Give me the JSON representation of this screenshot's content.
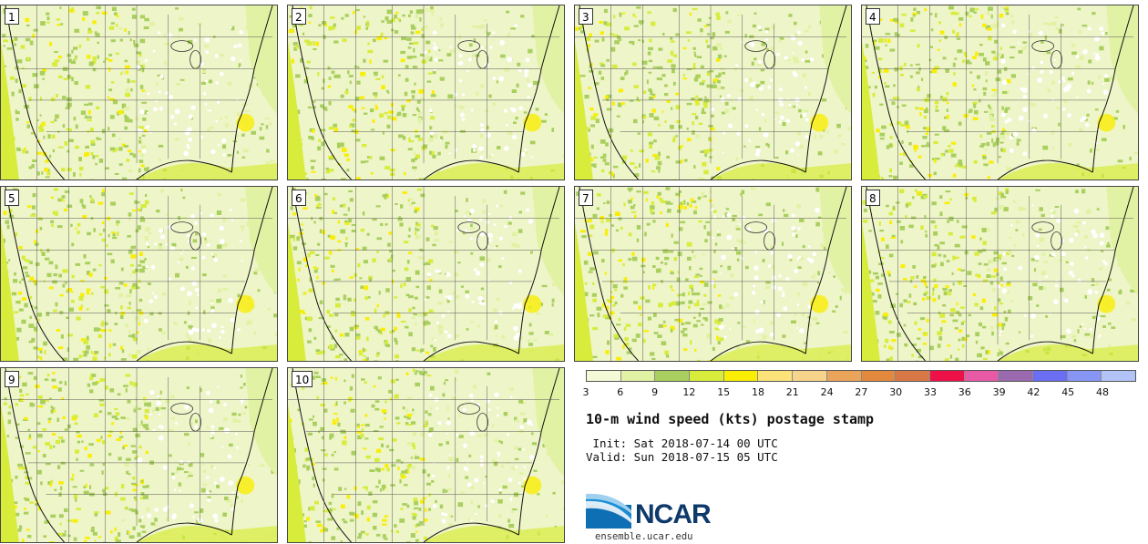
{
  "panels": [
    {
      "label": "1"
    },
    {
      "label": "2"
    },
    {
      "label": "3"
    },
    {
      "label": "4"
    },
    {
      "label": "5"
    },
    {
      "label": "6"
    },
    {
      "label": "7"
    },
    {
      "label": "8"
    },
    {
      "label": "9"
    },
    {
      "label": "10"
    }
  ],
  "colorbar": {
    "colors": [
      "#f4f9d6",
      "#e2f2a4",
      "#a9cf5e",
      "#d7ec3b",
      "#f9ee04",
      "#fce379",
      "#f7d48b",
      "#eba55a",
      "#e3893e",
      "#d87846",
      "#ee1148",
      "#e95aa6",
      "#9b6aae",
      "#6a6ef2",
      "#8796f4",
      "#b2c3f7"
    ],
    "labels": [
      "3",
      "6",
      "9",
      "12",
      "15",
      "18",
      "21",
      "24",
      "27",
      "30",
      "33",
      "36",
      "39",
      "42",
      "45",
      "48"
    ]
  },
  "title": "10-m wind speed (kts) postage stamp",
  "init": " Init: Sat 2018-07-14 00 UTC",
  "valid": "Valid: Sun 2018-07-15 05 UTC",
  "logo": {
    "text": "NCAR"
  },
  "website": "ensemble.ucar.edu"
}
